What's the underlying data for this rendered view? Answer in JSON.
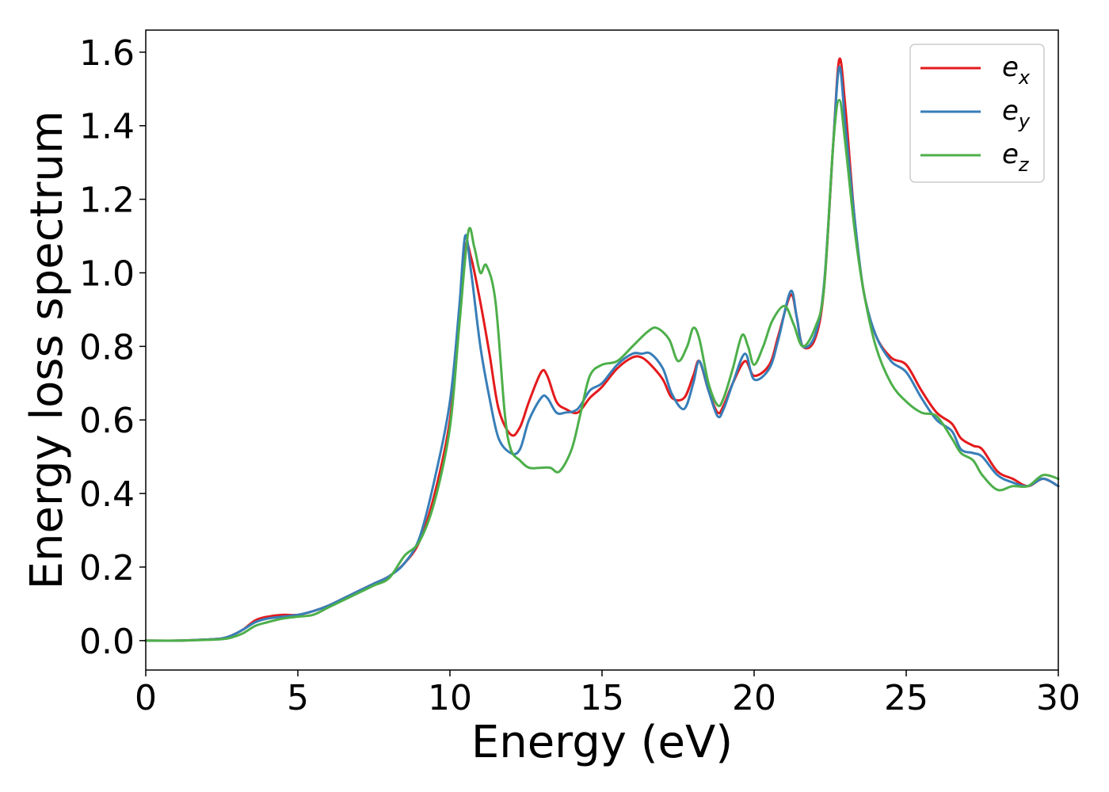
{
  "chart_data": {
    "type": "line",
    "title": "",
    "xlabel": "Energy (eV)",
    "ylabel": "Energy loss spectrum",
    "xlim": [
      0,
      30
    ],
    "ylim": [
      -0.08,
      1.66
    ],
    "xticks": [
      0,
      5,
      10,
      15,
      20,
      25,
      30
    ],
    "xtick_labels": [
      "0",
      "5",
      "10",
      "15",
      "20",
      "25",
      "30"
    ],
    "yticks": [
      0.0,
      0.2,
      0.4,
      0.6,
      0.8,
      1.0,
      1.2,
      1.4,
      1.6
    ],
    "ytick_labels": [
      "0.0",
      "0.2",
      "0.4",
      "0.6",
      "0.8",
      "1.0",
      "1.2",
      "1.4",
      "1.6"
    ],
    "grid": false,
    "legend_position": "top-right",
    "series": [
      {
        "name": "e_x",
        "legend_main": "e",
        "legend_sub": "x",
        "color": "#e41a1c",
        "x": [
          0,
          1,
          2,
          2.5,
          2.8,
          3.2,
          3.6,
          4.0,
          4.5,
          5.0,
          5.5,
          6.0,
          6.5,
          7.0,
          7.5,
          8.0,
          8.5,
          9.0,
          9.5,
          10.0,
          10.3,
          10.5,
          10.7,
          11.0,
          11.3,
          11.6,
          12.0,
          12.3,
          12.6,
          13.0,
          13.2,
          13.5,
          13.8,
          14.2,
          14.6,
          15.0,
          15.5,
          16.0,
          16.3,
          16.6,
          17.0,
          17.3,
          17.7,
          18.0,
          18.2,
          18.5,
          18.8,
          19.0,
          19.3,
          19.7,
          20.0,
          20.5,
          20.8,
          21.2,
          21.4,
          21.6,
          22.0,
          22.3,
          22.6,
          22.8,
          23.0,
          23.3,
          23.6,
          24.0,
          24.5,
          25.0,
          25.5,
          26.0,
          26.5,
          26.8,
          27.2,
          27.5,
          28.0,
          28.5,
          29.0,
          29.5,
          30.0
        ],
        "y": [
          0.0,
          0.0,
          0.003,
          0.006,
          0.013,
          0.03,
          0.055,
          0.065,
          0.07,
          0.07,
          0.08,
          0.095,
          0.115,
          0.135,
          0.155,
          0.175,
          0.21,
          0.27,
          0.4,
          0.6,
          0.86,
          1.07,
          1.04,
          0.92,
          0.78,
          0.63,
          0.56,
          0.58,
          0.65,
          0.73,
          0.72,
          0.65,
          0.63,
          0.62,
          0.66,
          0.69,
          0.74,
          0.77,
          0.77,
          0.75,
          0.71,
          0.66,
          0.66,
          0.72,
          0.76,
          0.68,
          0.62,
          0.64,
          0.7,
          0.76,
          0.72,
          0.75,
          0.83,
          0.94,
          0.88,
          0.8,
          0.82,
          0.96,
          1.35,
          1.58,
          1.45,
          1.15,
          0.95,
          0.83,
          0.77,
          0.75,
          0.68,
          0.62,
          0.59,
          0.55,
          0.53,
          0.52,
          0.46,
          0.44,
          0.42,
          0.44,
          0.42
        ]
      },
      {
        "name": "e_y",
        "legend_main": "e",
        "legend_sub": "y",
        "color": "#377eb8",
        "x": [
          0,
          1,
          2,
          2.5,
          2.8,
          3.2,
          3.6,
          4.0,
          4.5,
          5.0,
          5.5,
          6.0,
          6.5,
          7.0,
          7.5,
          8.0,
          8.5,
          9.0,
          9.5,
          10.0,
          10.3,
          10.5,
          10.7,
          11.0,
          11.3,
          11.6,
          12.0,
          12.3,
          12.6,
          13.0,
          13.2,
          13.5,
          13.8,
          14.2,
          14.6,
          15.0,
          15.5,
          16.0,
          16.3,
          16.6,
          17.0,
          17.3,
          17.7,
          18.0,
          18.2,
          18.5,
          18.8,
          19.0,
          19.3,
          19.7,
          20.0,
          20.5,
          20.8,
          21.2,
          21.4,
          21.6,
          22.0,
          22.3,
          22.6,
          22.8,
          23.0,
          23.3,
          23.6,
          24.0,
          24.5,
          25.0,
          25.5,
          26.0,
          26.5,
          26.8,
          27.2,
          27.5,
          28.0,
          28.5,
          29.0,
          29.5,
          30.0
        ],
        "y": [
          0.0,
          0.0,
          0.003,
          0.006,
          0.013,
          0.03,
          0.05,
          0.06,
          0.065,
          0.07,
          0.08,
          0.095,
          0.115,
          0.135,
          0.155,
          0.175,
          0.21,
          0.28,
          0.44,
          0.65,
          0.9,
          1.1,
          1.0,
          0.8,
          0.66,
          0.55,
          0.51,
          0.52,
          0.6,
          0.66,
          0.66,
          0.62,
          0.62,
          0.63,
          0.68,
          0.7,
          0.75,
          0.78,
          0.78,
          0.78,
          0.74,
          0.67,
          0.63,
          0.7,
          0.76,
          0.68,
          0.61,
          0.63,
          0.7,
          0.78,
          0.71,
          0.74,
          0.82,
          0.95,
          0.88,
          0.8,
          0.83,
          0.97,
          1.35,
          1.56,
          1.4,
          1.15,
          0.95,
          0.83,
          0.76,
          0.73,
          0.66,
          0.6,
          0.57,
          0.52,
          0.51,
          0.5,
          0.45,
          0.43,
          0.42,
          0.44,
          0.42
        ]
      },
      {
        "name": "e_z",
        "legend_main": "e",
        "legend_sub": "z",
        "color": "#4daf4a",
        "x": [
          0,
          1,
          2,
          2.5,
          2.8,
          3.2,
          3.6,
          4.0,
          4.5,
          5.0,
          5.5,
          6.0,
          6.5,
          7.0,
          7.5,
          8.0,
          8.5,
          9.0,
          9.5,
          10.0,
          10.3,
          10.6,
          10.8,
          11.0,
          11.2,
          11.5,
          11.8,
          12.0,
          12.3,
          12.6,
          13.0,
          13.3,
          13.6,
          14.0,
          14.3,
          14.6,
          15.0,
          15.5,
          16.0,
          16.5,
          16.8,
          17.2,
          17.5,
          17.8,
          18.0,
          18.2,
          18.5,
          18.8,
          19.0,
          19.3,
          19.6,
          19.8,
          20.0,
          20.3,
          20.6,
          21.0,
          21.3,
          21.6,
          22.0,
          22.3,
          22.6,
          22.8,
          23.0,
          23.3,
          23.6,
          24.0,
          24.5,
          25.0,
          25.5,
          26.0,
          26.5,
          26.8,
          27.2,
          27.5,
          28.0,
          28.5,
          29.0,
          29.5,
          30.0
        ],
        "y": [
          0.0,
          0.0,
          0.002,
          0.004,
          0.008,
          0.02,
          0.04,
          0.05,
          0.06,
          0.065,
          0.07,
          0.09,
          0.11,
          0.13,
          0.15,
          0.17,
          0.23,
          0.27,
          0.38,
          0.58,
          0.85,
          1.11,
          1.07,
          1.0,
          1.02,
          0.92,
          0.62,
          0.52,
          0.49,
          0.47,
          0.47,
          0.47,
          0.46,
          0.52,
          0.62,
          0.72,
          0.75,
          0.76,
          0.8,
          0.84,
          0.85,
          0.82,
          0.76,
          0.8,
          0.85,
          0.82,
          0.7,
          0.64,
          0.66,
          0.74,
          0.83,
          0.8,
          0.75,
          0.8,
          0.87,
          0.91,
          0.86,
          0.8,
          0.85,
          0.96,
          1.35,
          1.47,
          1.35,
          1.12,
          0.95,
          0.8,
          0.7,
          0.65,
          0.62,
          0.61,
          0.55,
          0.51,
          0.49,
          0.45,
          0.41,
          0.42,
          0.42,
          0.45,
          0.44
        ]
      }
    ]
  }
}
